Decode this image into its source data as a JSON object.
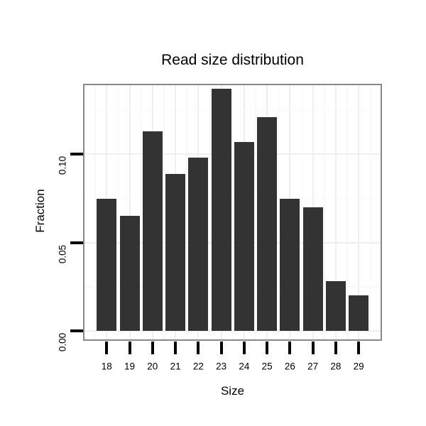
{
  "chart_data": {
    "type": "bar",
    "title": "Read size distribution",
    "xlabel": "Size",
    "ylabel": "Fraction",
    "categories": [
      "18",
      "19",
      "20",
      "21",
      "22",
      "23",
      "24",
      "25",
      "26",
      "27",
      "28",
      "29"
    ],
    "values": [
      0.075,
      0.065,
      0.113,
      0.089,
      0.098,
      0.137,
      0.107,
      0.121,
      0.075,
      0.07,
      0.028,
      0.02
    ],
    "y_tick_labels": [
      "0.00",
      "0.05",
      "0.10"
    ],
    "y_tick_values": [
      0.0,
      0.05,
      0.1
    ],
    "y_minor_values": [
      0.025,
      0.075,
      0.125
    ],
    "ylim": [
      0,
      0.14
    ],
    "grid": "major and minor gridlines on white panel",
    "legend_position": "none",
    "bar_color": "#333333",
    "panel_border_color": "#888888",
    "grid_major_color": "#efefef",
    "grid_minor_color": "#f8f8f8",
    "background_color": "#ffffff",
    "text_color": "#000000"
  }
}
